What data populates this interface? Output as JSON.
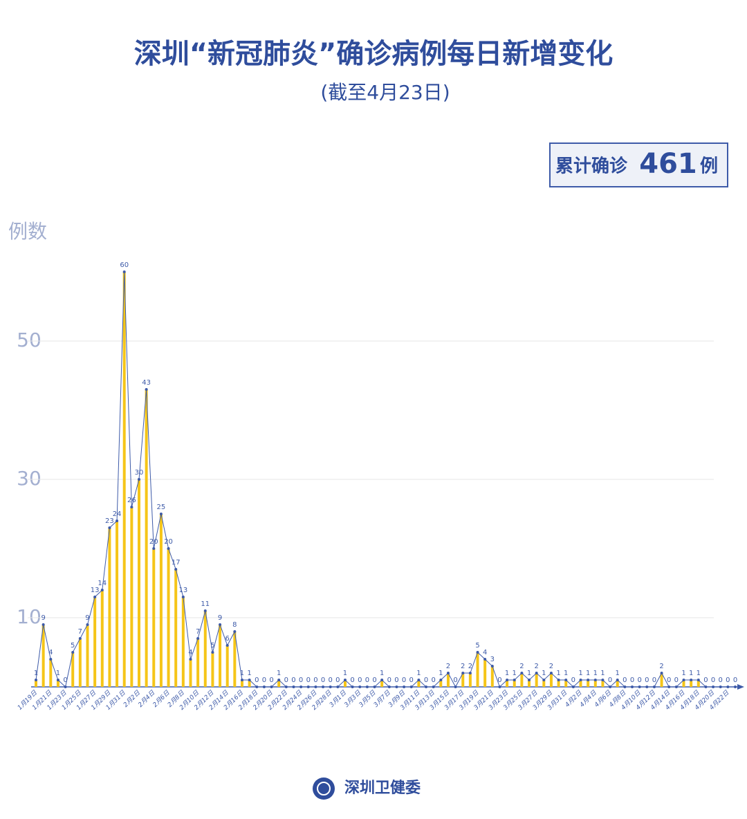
{
  "chart_data": {
    "type": "bar",
    "title": "深圳“新冠肺炎”确诊病例每日新增变化",
    "subtitle": "(截至4月23日)",
    "total": {
      "prefix": "累计确诊",
      "value": 461,
      "suffix": "例"
    },
    "y_label": "例数",
    "footer": "深圳卫健委",
    "bar_color": "#f5c518",
    "line": true,
    "line_color": "#3d5aa8",
    "grid": true,
    "ylim": [
      0,
      63
    ],
    "yticks": [
      10,
      30,
      50
    ],
    "categories": [
      "1月19日",
      null,
      "1月21日",
      null,
      "1月23日",
      null,
      "1月25日",
      null,
      "1月27日",
      null,
      "1月29日",
      null,
      "1月31日",
      null,
      "2月2日",
      null,
      "2月4日",
      null,
      "2月6日",
      null,
      "2月8日",
      null,
      "2月10日",
      null,
      "2月12日",
      null,
      "2月14日",
      null,
      "2月16日",
      null,
      "2月18日",
      null,
      "2月20日",
      null,
      "2月22日",
      null,
      "2月24日",
      null,
      "2月26日",
      null,
      "2月28日",
      null,
      "3月1日",
      null,
      "3月3日",
      null,
      "3月5日",
      null,
      "3月7日",
      null,
      "3月9日",
      null,
      "3月11日",
      null,
      "3月13日",
      null,
      "3月15日",
      null,
      "3月17日",
      null,
      "3月19日",
      null,
      "3月21日",
      null,
      "3月23日",
      null,
      "3月25日",
      null,
      "3月27日",
      null,
      "3月29日",
      null,
      "3月31日",
      null,
      "4月2日",
      null,
      "4月4日",
      null,
      "4月6日",
      null,
      "4月8日",
      null,
      "4月10日",
      null,
      "4月12日",
      null,
      "4月14日",
      null,
      "4月16日",
      null,
      "4月18日",
      null,
      "4月20日",
      null,
      "4月22日",
      null
    ],
    "values": [
      1,
      9,
      4,
      1,
      0,
      5,
      7,
      9,
      13,
      14,
      23,
      24,
      60,
      26,
      30,
      43,
      20,
      25,
      20,
      17,
      13,
      4,
      7,
      11,
      5,
      9,
      6,
      8,
      1,
      1,
      0,
      0,
      0,
      1,
      0,
      0,
      0,
      0,
      0,
      0,
      0,
      0,
      1,
      0,
      0,
      0,
      0,
      1,
      0,
      0,
      0,
      0,
      1,
      0,
      0,
      1,
      2,
      0,
      2,
      2,
      5,
      4,
      3,
      0,
      1,
      1,
      2,
      1,
      2,
      1,
      2,
      1,
      1,
      0,
      1,
      1,
      1,
      1,
      0,
      1,
      0,
      0,
      0,
      0,
      0,
      2,
      0,
      0,
      1,
      1,
      1,
      0,
      0,
      0,
      0,
      0
    ]
  }
}
